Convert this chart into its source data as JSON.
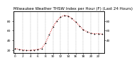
{
  "title": "Milwaukee Weather THSW Index per Hour (F) (Last 24 Hours)",
  "hours": [
    0,
    1,
    2,
    3,
    4,
    5,
    6,
    7,
    8,
    9,
    10,
    11,
    12,
    13,
    14,
    15,
    16,
    17,
    18,
    19,
    20,
    21,
    22,
    23
  ],
  "values": [
    24,
    22,
    21,
    20,
    20,
    21,
    22,
    24,
    35,
    52,
    68,
    80,
    88,
    91,
    90,
    85,
    78,
    70,
    62,
    58,
    55,
    54,
    54,
    53
  ],
  "line_color": "#cc0000",
  "marker_color": "#000000",
  "bg_color": "#ffffff",
  "plot_bg": "#ffffff",
  "grid_color": "#888888",
  "ylim": [
    15,
    100
  ],
  "yticks_left": [
    20,
    40,
    60,
    80
  ],
  "yticks_right": [
    40,
    60,
    80
  ],
  "xticks": [
    0,
    2,
    4,
    6,
    8,
    10,
    12,
    14,
    16,
    18,
    20,
    22
  ],
  "title_fontsize": 4.0,
  "tick_fontsize": 3.2
}
